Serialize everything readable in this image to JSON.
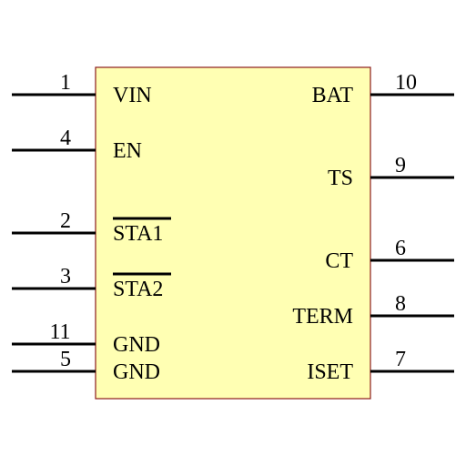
{
  "component": {
    "body_fill": "#ffffb3",
    "body_stroke": "#8b1a1a",
    "pin_color": "#000000",
    "left_pins": [
      {
        "number": "1",
        "name": "VIN",
        "active_low": false
      },
      {
        "number": "4",
        "name": "EN",
        "active_low": false
      },
      {
        "number": "2",
        "name": "STA1",
        "active_low": true
      },
      {
        "number": "3",
        "name": "STA2",
        "active_low": true
      },
      {
        "number": "11",
        "name": "GND",
        "active_low": false
      },
      {
        "number": "5",
        "name": "GND",
        "active_low": false
      }
    ],
    "right_pins": [
      {
        "number": "10",
        "name": "BAT",
        "active_low": false
      },
      {
        "number": "9",
        "name": "TS",
        "active_low": false
      },
      {
        "number": "6",
        "name": "CT",
        "active_low": false
      },
      {
        "number": "8",
        "name": "TERM",
        "active_low": false
      },
      {
        "number": "7",
        "name": "ISET",
        "active_low": false
      }
    ]
  }
}
